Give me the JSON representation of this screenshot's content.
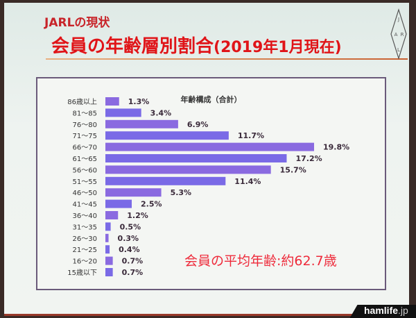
{
  "slide": {
    "subtitle": "JARLの現状",
    "title_main": "会員の年齢層別割合",
    "title_paren": "(2019年1月現在)",
    "logo_text": "JARL",
    "mean_age": "会員の平均年齢:約62.7歳"
  },
  "watermark": {
    "brand": "hamlife",
    "suffix": ".jp"
  },
  "chart_data": {
    "type": "bar",
    "orientation": "horizontal",
    "title": "年齢構成（合計）",
    "categories": [
      "86歳以上",
      "81〜85",
      "76〜80",
      "71〜75",
      "66〜70",
      "61〜65",
      "56〜60",
      "51〜55",
      "46〜50",
      "41〜45",
      "36〜40",
      "31〜35",
      "26〜30",
      "21〜25",
      "16〜20",
      "15歳以下"
    ],
    "values": [
      1.3,
      3.4,
      6.9,
      11.7,
      19.8,
      17.2,
      15.7,
      11.4,
      5.3,
      2.5,
      1.2,
      0.5,
      0.3,
      0.4,
      0.7,
      0.7
    ],
    "labels": [
      "1.3%",
      "3.4%",
      "6.9%",
      "11.7%",
      "19.8%",
      "17.2%",
      "15.7%",
      "11.4%",
      "5.3%",
      "2.5%",
      "1.2%",
      "0.5%",
      "0.3%",
      "0.4%",
      "0.7%",
      "0.7%"
    ],
    "unit": "%",
    "xlim": [
      0,
      20
    ],
    "bar_color": "#8a6ae0",
    "grid": false
  }
}
